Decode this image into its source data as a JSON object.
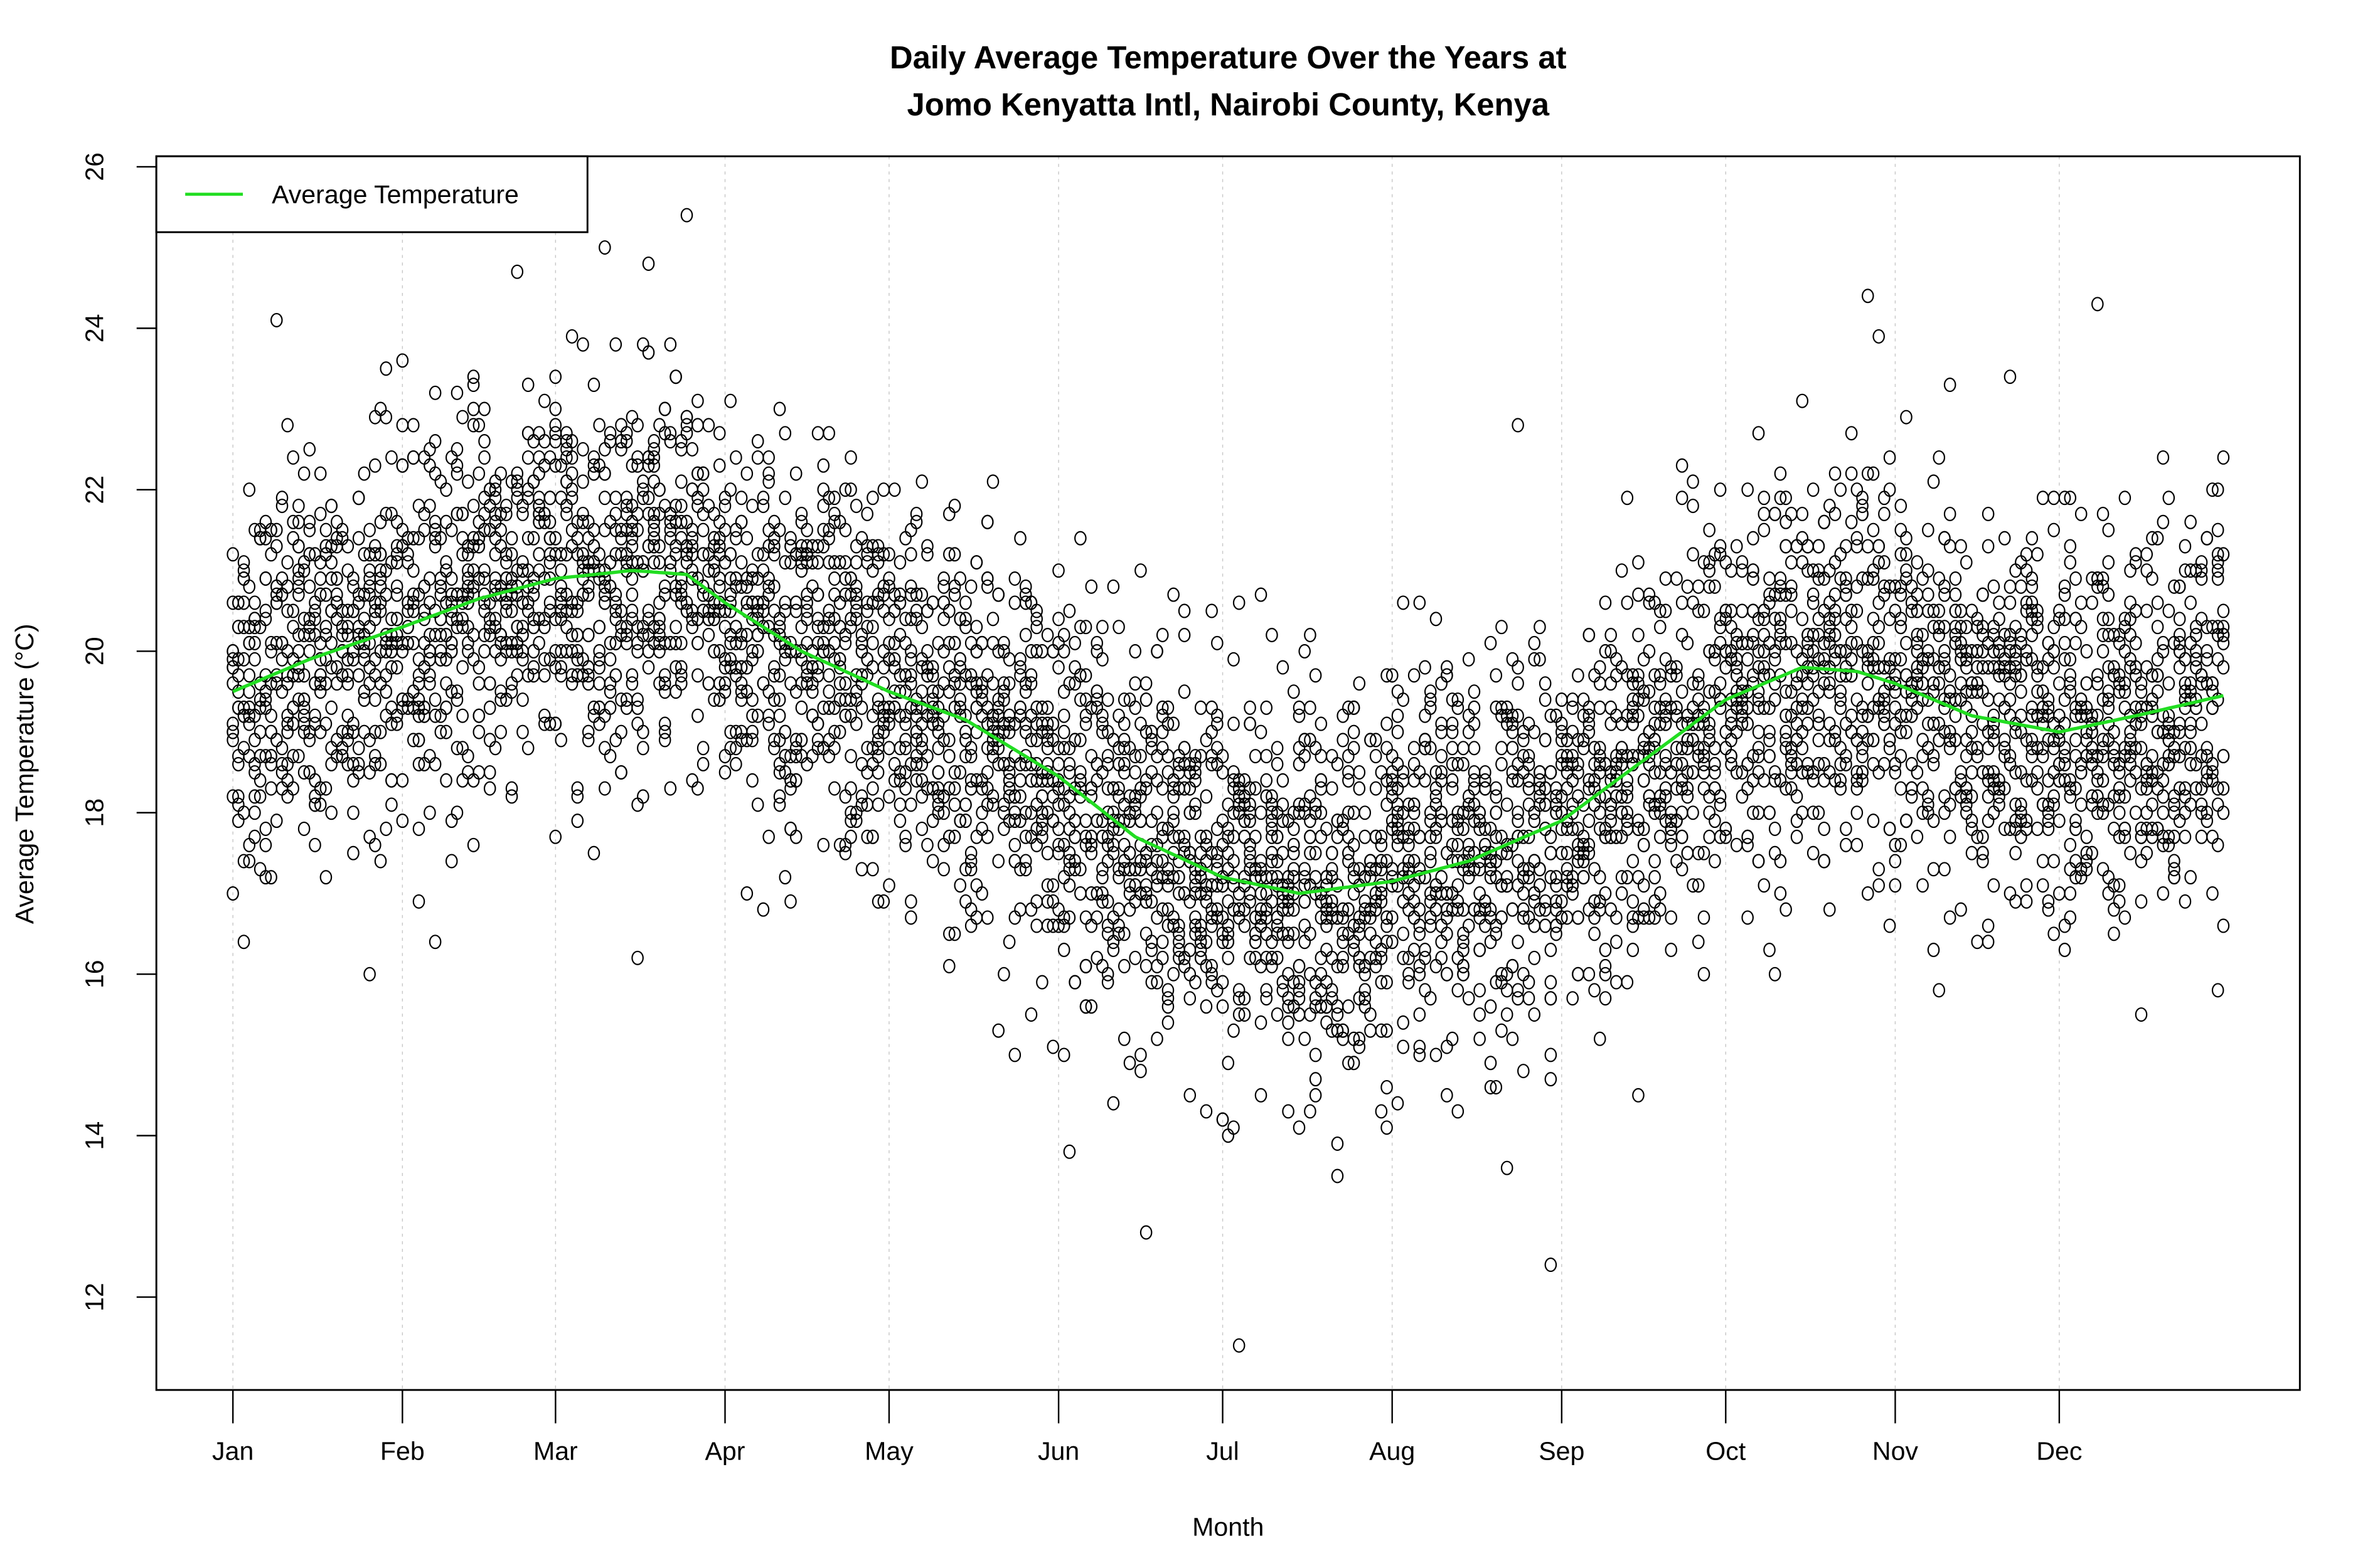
{
  "chart_data": {
    "type": "scatter",
    "title_line1": "Daily Average Temperature Over the Years at",
    "title_line2": "Jomo Kenyatta Intl, Nairobi County, Kenya",
    "xlabel": "Month",
    "ylabel": "Average Temperature (°C)",
    "x_unit": "day of year",
    "xlim": [
      -13,
      379
    ],
    "ylim": [
      10.85,
      26.13
    ],
    "x_ticks": [
      {
        "label": "Jan",
        "day": 1
      },
      {
        "label": "Feb",
        "day": 32
      },
      {
        "label": "Mar",
        "day": 60
      },
      {
        "label": "Apr",
        "day": 91
      },
      {
        "label": "May",
        "day": 121
      },
      {
        "label": "Jun",
        "day": 152
      },
      {
        "label": "Jul",
        "day": 182
      },
      {
        "label": "Aug",
        "day": 213
      },
      {
        "label": "Sep",
        "day": 244
      },
      {
        "label": "Oct",
        "day": 274
      },
      {
        "label": "Nov",
        "day": 305
      },
      {
        "label": "Dec",
        "day": 335
      }
    ],
    "y_ticks": [
      12,
      14,
      16,
      18,
      20,
      22,
      24,
      26
    ],
    "grid": "vertical dotted at month ticks",
    "legend": {
      "position": "top-left",
      "entries": [
        {
          "label": "Average Temperature",
          "color": "#22dd22"
        }
      ]
    },
    "average_line": {
      "name": "Average Temperature",
      "color": "#22dd22",
      "points": [
        [
          1,
          19.5
        ],
        [
          15,
          19.9
        ],
        [
          32,
          20.3
        ],
        [
          46,
          20.65
        ],
        [
          60,
          20.9
        ],
        [
          74,
          21.0
        ],
        [
          84,
          20.95
        ],
        [
          91,
          20.6
        ],
        [
          105,
          20.0
        ],
        [
          121,
          19.5
        ],
        [
          135,
          19.15
        ],
        [
          152,
          18.45
        ],
        [
          166,
          17.7
        ],
        [
          182,
          17.2
        ],
        [
          196,
          17.0
        ],
        [
          213,
          17.15
        ],
        [
          227,
          17.4
        ],
        [
          244,
          17.9
        ],
        [
          258,
          18.6
        ],
        [
          274,
          19.4
        ],
        [
          288,
          19.8
        ],
        [
          298,
          19.75
        ],
        [
          305,
          19.6
        ],
        [
          319,
          19.2
        ],
        [
          335,
          19.0
        ],
        [
          349,
          19.2
        ],
        [
          365,
          19.45
        ]
      ]
    },
    "scatter": {
      "marker": "open circle",
      "color": "#000000",
      "spread_sd": 1.2,
      "notable_points": [
        [
          9,
          24.1
        ],
        [
          84,
          25.4
        ],
        [
          69,
          25.0
        ],
        [
          168,
          12.8
        ],
        [
          185,
          11.4
        ],
        [
          242,
          12.4
        ],
        [
          300,
          24.4
        ],
        [
          342,
          24.3
        ],
        [
          236,
          22.8
        ]
      ]
    }
  }
}
